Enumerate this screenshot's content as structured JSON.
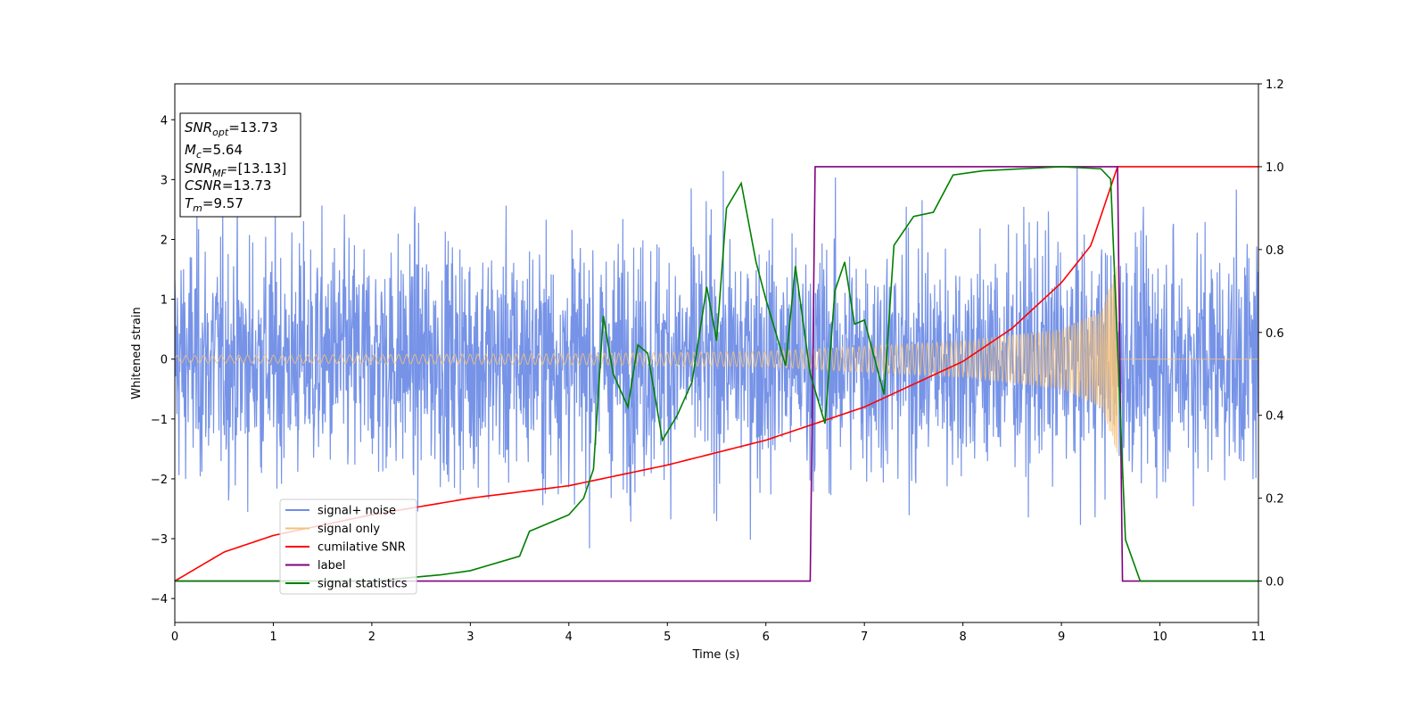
{
  "chart_data": {
    "type": "line",
    "title": "",
    "xlabel": "Time (s)",
    "ylabel": "Whitened strain",
    "xlim": [
      0,
      11
    ],
    "ylim": [
      -4.4,
      4.6
    ],
    "y2lim": [
      -0.1,
      1.2
    ],
    "grid": false,
    "legend_position": "lower-left",
    "x_ticks": [
      "0",
      "1",
      "2",
      "3",
      "4",
      "5",
      "6",
      "7",
      "8",
      "9",
      "10",
      "11"
    ],
    "y_ticks": [
      "4",
      "3",
      "2",
      "1",
      "0",
      "−1",
      "−2",
      "−3",
      "−4"
    ],
    "y2_ticks": [
      "1.2",
      "1.0",
      "0.8",
      "0.6",
      "0.4",
      "0.2",
      "0.0"
    ],
    "info_box": [
      {
        "sym": "SNR",
        "sub": "opt",
        "tail": "=13.73"
      },
      {
        "sym": "M",
        "sub": "c",
        "tail": "=5.64"
      },
      {
        "sym": "SNR",
        "sub": "MF",
        "tail": "=[13.13]"
      },
      {
        "sym": "CSNR",
        "sub": "",
        "tail": "=13.73"
      },
      {
        "sym": "T",
        "sub": "m",
        "tail": "=9.57"
      }
    ],
    "series": [
      {
        "name": "signal+ noise",
        "color": "#6f8de6",
        "axis": "left",
        "envelope_std": 1.0
      },
      {
        "name": "signal only",
        "color": "#f5c27a",
        "axis": "left",
        "merge_time": 9.57,
        "amplitude_points": [
          [
            0,
            0.06
          ],
          [
            4,
            0.09
          ],
          [
            6,
            0.13
          ],
          [
            8,
            0.3
          ],
          [
            9,
            0.5
          ],
          [
            9.4,
            0.8
          ],
          [
            9.57,
            1.6
          ]
        ]
      },
      {
        "name": "cumilative SNR",
        "color": "#ff0000",
        "axis": "right",
        "points": [
          [
            0,
            0.0
          ],
          [
            0.5,
            0.07
          ],
          [
            1,
            0.11
          ],
          [
            2,
            0.16
          ],
          [
            3,
            0.2
          ],
          [
            4,
            0.23
          ],
          [
            5,
            0.28
          ],
          [
            6,
            0.34
          ],
          [
            7,
            0.42
          ],
          [
            8,
            0.53
          ],
          [
            8.5,
            0.61
          ],
          [
            9,
            0.72
          ],
          [
            9.3,
            0.81
          ],
          [
            9.57,
            1.0
          ],
          [
            11,
            1.0
          ]
        ]
      },
      {
        "name": "label",
        "color": "#800080",
        "axis": "right",
        "points": [
          [
            0,
            0.0
          ],
          [
            6.45,
            0.0
          ],
          [
            6.5,
            1.0
          ],
          [
            9.57,
            1.0
          ],
          [
            9.62,
            0.0
          ],
          [
            11,
            0.0
          ]
        ]
      },
      {
        "name": "signal statistics",
        "color": "#008000",
        "axis": "right",
        "points": [
          [
            0,
            0.0
          ],
          [
            2.0,
            0.0
          ],
          [
            2.7,
            0.015
          ],
          [
            3.0,
            0.025
          ],
          [
            3.5,
            0.06
          ],
          [
            3.6,
            0.12
          ],
          [
            3.8,
            0.14
          ],
          [
            4.0,
            0.16
          ],
          [
            4.15,
            0.2
          ],
          [
            4.25,
            0.27
          ],
          [
            4.35,
            0.64
          ],
          [
            4.45,
            0.5
          ],
          [
            4.6,
            0.42
          ],
          [
            4.7,
            0.57
          ],
          [
            4.8,
            0.55
          ],
          [
            4.95,
            0.34
          ],
          [
            5.1,
            0.4
          ],
          [
            5.25,
            0.48
          ],
          [
            5.4,
            0.71
          ],
          [
            5.5,
            0.58
          ],
          [
            5.6,
            0.9
          ],
          [
            5.75,
            0.96
          ],
          [
            5.9,
            0.77
          ],
          [
            6.0,
            0.68
          ],
          [
            6.2,
            0.52
          ],
          [
            6.3,
            0.76
          ],
          [
            6.45,
            0.5
          ],
          [
            6.6,
            0.38
          ],
          [
            6.7,
            0.7
          ],
          [
            6.8,
            0.77
          ],
          [
            6.9,
            0.62
          ],
          [
            7.0,
            0.63
          ],
          [
            7.2,
            0.45
          ],
          [
            7.3,
            0.81
          ],
          [
            7.5,
            0.88
          ],
          [
            7.7,
            0.89
          ],
          [
            7.9,
            0.98
          ],
          [
            8.2,
            0.99
          ],
          [
            8.6,
            0.995
          ],
          [
            9.0,
            1.0
          ],
          [
            9.4,
            0.995
          ],
          [
            9.5,
            0.97
          ],
          [
            9.65,
            0.1
          ],
          [
            9.8,
            0.0
          ],
          [
            11,
            0.0
          ]
        ]
      }
    ]
  }
}
